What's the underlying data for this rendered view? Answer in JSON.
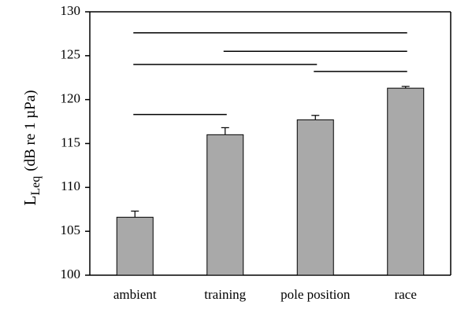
{
  "chart_data": {
    "type": "bar",
    "categories": [
      "ambient",
      "training",
      "pole position",
      "race"
    ],
    "values": [
      106.6,
      116.0,
      117.7,
      121.3
    ],
    "errors": [
      0.7,
      0.8,
      0.5,
      0.2
    ],
    "ylim": [
      100,
      130
    ],
    "yticks": [
      100,
      105,
      110,
      115,
      120,
      125,
      130
    ],
    "ylabel": {
      "main": "L",
      "subscript": "Leq",
      "units": "(dB re 1 µPa)"
    },
    "xlabel": "",
    "bar_color": "#a9a9a9",
    "significance_lines": [
      {
        "from": "ambient",
        "to": "race",
        "y": 127.6
      },
      {
        "from": "training",
        "to": "race",
        "y": 125.5
      },
      {
        "from": "ambient",
        "to": "pole position",
        "y": 124.0
      },
      {
        "from": "pole position",
        "to": "race",
        "y": 123.2
      },
      {
        "from": "ambient",
        "to": "training",
        "y": 118.3
      }
    ]
  }
}
